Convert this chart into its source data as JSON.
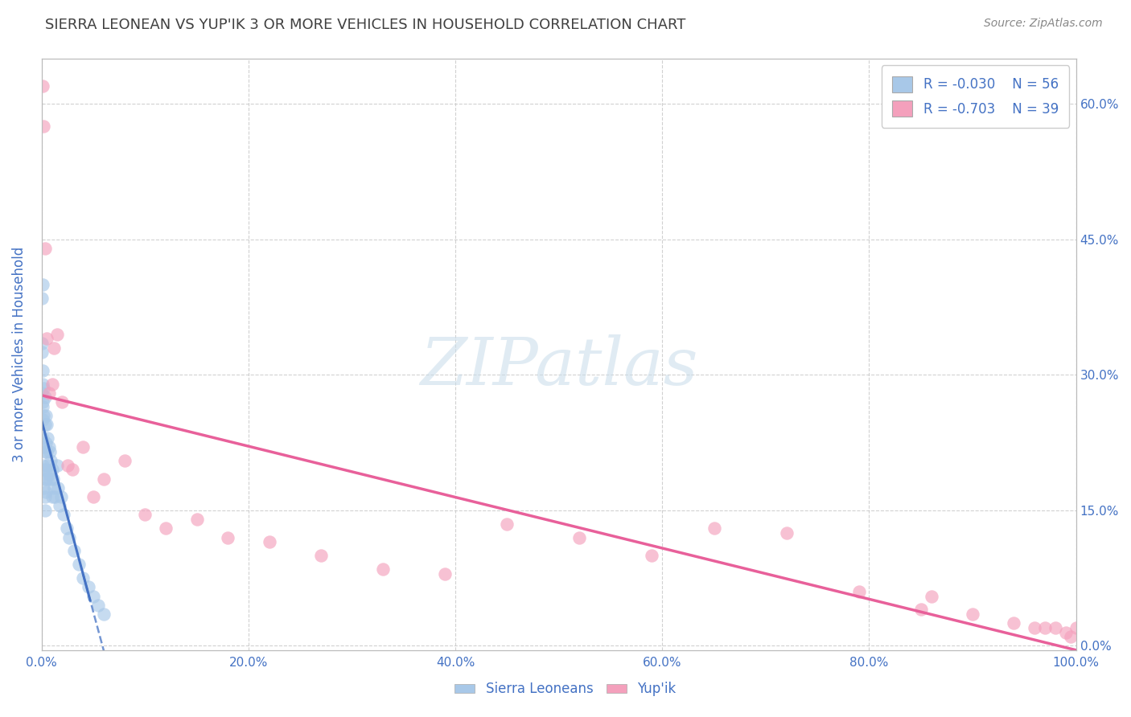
{
  "title": "SIERRA LEONEAN VS YUP'IK 3 OR MORE VEHICLES IN HOUSEHOLD CORRELATION CHART",
  "source": "Source: ZipAtlas.com",
  "ylabel": "3 or more Vehicles in Household",
  "legend_labels": [
    "Sierra Leoneans",
    "Yup'ik"
  ],
  "r_blue": -0.03,
  "r_pink": -0.703,
  "n_blue": 56,
  "n_pink": 39,
  "blue_scatter_color": "#a8c8e8",
  "pink_scatter_color": "#f4a0bc",
  "blue_line_color": "#4472c4",
  "pink_line_color": "#e8609a",
  "title_color": "#404040",
  "axis_label_color": "#4472c4",
  "legend_text_color": "#4472c4",
  "background_color": "#ffffff",
  "grid_color": "#cccccc",
  "watermark_color": "#c8dcea",
  "xmin": 0.0,
  "xmax": 1.0,
  "ymin": -0.005,
  "ymax": 0.65,
  "blue_scatter_x": [
    0.0002,
    0.0003,
    0.0004,
    0.0005,
    0.0006,
    0.0007,
    0.0008,
    0.0009,
    0.001,
    0.001,
    0.001,
    0.001,
    0.002,
    0.002,
    0.002,
    0.002,
    0.002,
    0.003,
    0.003,
    0.003,
    0.003,
    0.003,
    0.003,
    0.004,
    0.004,
    0.004,
    0.004,
    0.005,
    0.005,
    0.005,
    0.006,
    0.006,
    0.007,
    0.007,
    0.008,
    0.008,
    0.009,
    0.01,
    0.01,
    0.011,
    0.012,
    0.013,
    0.015,
    0.016,
    0.017,
    0.019,
    0.021,
    0.024,
    0.027,
    0.031,
    0.036,
    0.04,
    0.045,
    0.05,
    0.055,
    0.06
  ],
  "blue_scatter_y": [
    0.385,
    0.335,
    0.28,
    0.325,
    0.29,
    0.265,
    0.23,
    0.305,
    0.4,
    0.27,
    0.25,
    0.2,
    0.285,
    0.255,
    0.22,
    0.195,
    0.175,
    0.275,
    0.245,
    0.215,
    0.185,
    0.165,
    0.15,
    0.255,
    0.225,
    0.195,
    0.17,
    0.245,
    0.215,
    0.185,
    0.23,
    0.2,
    0.22,
    0.19,
    0.215,
    0.185,
    0.205,
    0.195,
    0.165,
    0.185,
    0.175,
    0.165,
    0.2,
    0.175,
    0.155,
    0.165,
    0.145,
    0.13,
    0.12,
    0.105,
    0.09,
    0.075,
    0.065,
    0.055,
    0.045,
    0.035
  ],
  "pink_scatter_x": [
    0.001,
    0.002,
    0.003,
    0.005,
    0.007,
    0.01,
    0.012,
    0.015,
    0.02,
    0.025,
    0.03,
    0.04,
    0.05,
    0.06,
    0.08,
    0.1,
    0.12,
    0.15,
    0.18,
    0.22,
    0.27,
    0.33,
    0.39,
    0.45,
    0.52,
    0.59,
    0.65,
    0.72,
    0.79,
    0.85,
    0.86,
    0.9,
    0.94,
    0.96,
    0.97,
    0.98,
    0.99,
    0.995,
    1.0
  ],
  "pink_scatter_y": [
    0.62,
    0.575,
    0.44,
    0.34,
    0.28,
    0.29,
    0.33,
    0.345,
    0.27,
    0.2,
    0.195,
    0.22,
    0.165,
    0.185,
    0.205,
    0.145,
    0.13,
    0.14,
    0.12,
    0.115,
    0.1,
    0.085,
    0.08,
    0.135,
    0.12,
    0.1,
    0.13,
    0.125,
    0.06,
    0.04,
    0.055,
    0.035,
    0.025,
    0.02,
    0.02,
    0.02,
    0.015,
    0.01,
    0.02
  ],
  "figsize": [
    14.06,
    8.92
  ],
  "dpi": 100,
  "xtick_vals": [
    0.0,
    0.2,
    0.4,
    0.6,
    0.8,
    1.0
  ],
  "xtick_labels": [
    "0.0%",
    "20.0%",
    "40.0%",
    "60.0%",
    "80.0%",
    "100.0%"
  ],
  "ytick_vals": [
    0.0,
    0.15,
    0.3,
    0.45,
    0.6
  ],
  "ytick_labels": [
    "0.0%",
    "15.0%",
    "30.0%",
    "45.0%",
    "60.0%"
  ]
}
